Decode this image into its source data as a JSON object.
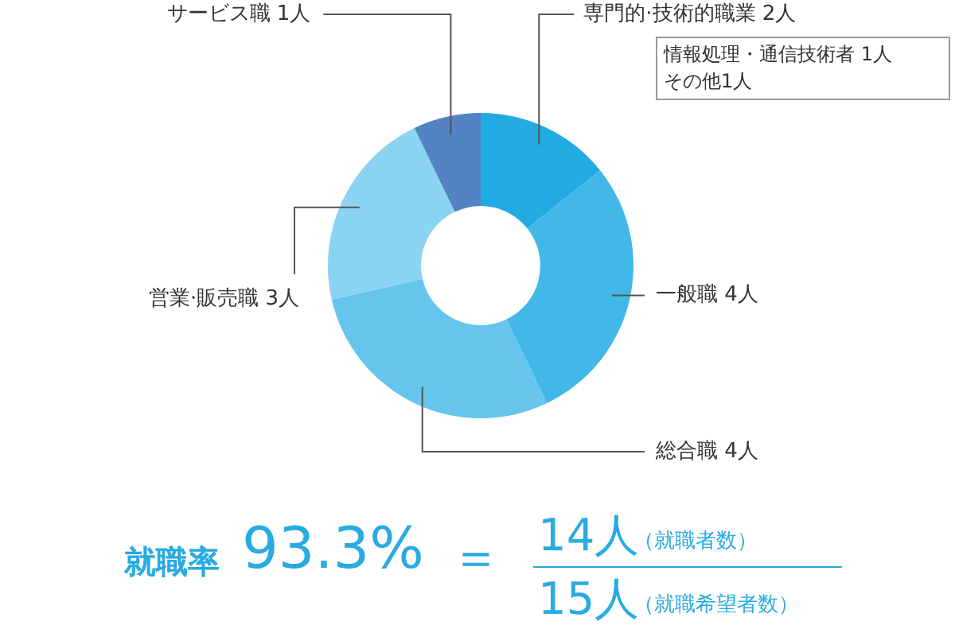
{
  "chart_data": {
    "type": "donut",
    "categories": [
      "専門的·技術的職業",
      "一般職",
      "総合職",
      "営業·販売職",
      "サービス職"
    ],
    "values": [
      2,
      4,
      4,
      3,
      1
    ],
    "value_labels": [
      "2人",
      "4人",
      "4人",
      "3人",
      "1人"
    ],
    "colors": [
      "#22abe2",
      "#42b8e8",
      "#66c5ed",
      "#8bd3f3",
      "#5383c4"
    ],
    "legend": false,
    "annotations": [
      "情報処理・通信技術者 1人",
      "その他1人",
      "就職率",
      "93.3%",
      "＝",
      "14人",
      "（就職者数）",
      "15人",
      "（就職希望者数）"
    ]
  }
}
